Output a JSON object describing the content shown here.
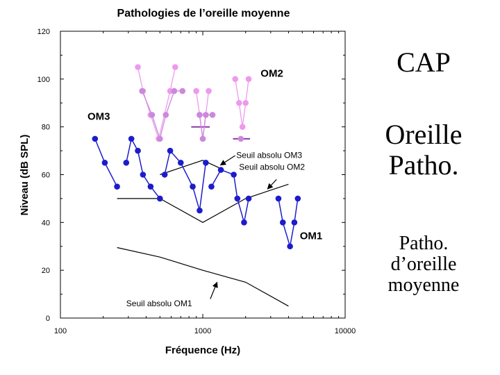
{
  "chart_data": {
    "type": "line",
    "title": "Pathologies de l’oreille moyenne",
    "xlabel": "Fréquence (Hz)",
    "ylabel": "Niveau (dB SPL)",
    "x_scale": "log",
    "xlim": [
      100,
      10000
    ],
    "ylim": [
      0,
      120
    ],
    "x_ticks": [
      100,
      1000,
      10000
    ],
    "x_tick_labels": [
      "100",
      "1000",
      "10000"
    ],
    "y_ticks": [
      0,
      20,
      40,
      60,
      80,
      100,
      120
    ],
    "y_tick_labels": [
      "0",
      "20",
      "40",
      "60",
      "80",
      "100",
      "120"
    ],
    "grid": false,
    "colors": {
      "om1": "#1c1ccc",
      "om2": "#ee99ee",
      "om3": "#cc88dd",
      "om3_bar": "#8a3aa8",
      "threshold": "#000000"
    },
    "series": [
      {
        "name": "OM1",
        "segments": [
          [
            [
              175,
              75
            ],
            [
              205,
              65
            ],
            [
              250,
              55
            ]
          ],
          [
            [
              290,
              65
            ],
            [
              315,
              75
            ],
            [
              350,
              70
            ],
            [
              380,
              60
            ],
            [
              430,
              55
            ],
            [
              500,
              50
            ]
          ],
          [
            [
              540,
              60
            ],
            [
              590,
              70
            ],
            [
              700,
              65
            ],
            [
              850,
              55
            ],
            [
              950,
              45
            ],
            [
              1050,
              65
            ]
          ],
          [
            [
              1150,
              55
            ],
            [
              1340,
              62
            ],
            [
              1650,
              60
            ],
            [
              1750,
              50
            ],
            [
              1950,
              40
            ],
            [
              2100,
              50
            ]
          ],
          [
            [
              3400,
              50
            ],
            [
              3650,
              40
            ],
            [
              4100,
              30
            ],
            [
              4400,
              40
            ],
            [
              4650,
              50
            ]
          ]
        ]
      },
      {
        "name": "OM2",
        "segments": [
          [
            [
              350,
              105
            ],
            [
              380,
              95
            ],
            [
              430,
              85
            ],
            [
              490,
              75
            ],
            [
              590,
              95
            ],
            [
              640,
              105
            ]
          ],
          [
            [
              900,
              95
            ],
            [
              950,
              85
            ],
            [
              1000,
              75
            ],
            [
              1100,
              95
            ]
          ],
          [
            [
              1690,
              100
            ],
            [
              1800,
              90
            ],
            [
              1900,
              80
            ],
            [
              2000,
              90
            ],
            [
              2100,
              100
            ]
          ]
        ]
      },
      {
        "name": "OM3",
        "segments": [
          [
            [
              375,
              95
            ],
            [
              440,
              85
            ],
            [
              500,
              75
            ],
            [
              550,
              85
            ],
            [
              630,
              95
            ],
            [
              720,
              95
            ]
          ],
          [
            [
              950,
              85
            ],
            [
              1000,
              75
            ],
            [
              1050,
              85
            ],
            [
              1170,
              85
            ]
          ],
          [
            [
              1850,
              75
            ]
          ]
        ]
      }
    ],
    "om3_bars": [
      [
        [
          830,
          80
        ],
        [
          1120,
          80
        ]
      ],
      [
        [
          1630,
          75
        ],
        [
          2150,
          75
        ]
      ]
    ],
    "thresholds": [
      {
        "name": "Seuil absolu OM1",
        "points": [
          [
            250,
            29.5
          ],
          [
            500,
            25.5
          ],
          [
            1000,
            20
          ],
          [
            2000,
            15
          ],
          [
            4000,
            5
          ]
        ]
      },
      {
        "name": "Seuil absolu OM2",
        "points": [
          [
            250,
            50
          ],
          [
            500,
            50
          ],
          [
            1000,
            40
          ],
          [
            2000,
            50
          ],
          [
            4000,
            56
          ]
        ]
      },
      {
        "name": "Seuil absolu OM3",
        "points": [
          [
            500,
            60
          ],
          [
            1000,
            66
          ],
          [
            1400,
            62
          ]
        ]
      }
    ],
    "annotations": [
      {
        "text": "OM2",
        "x": 2550,
        "y": 101
      },
      {
        "text": "OM3",
        "x": 155,
        "y": 83
      },
      {
        "text": "OM1",
        "x": 4800,
        "y": 33
      },
      {
        "text": "Seuil absolu OM3",
        "x": 1720,
        "y": 67
      },
      {
        "text": "Seuil absolu OM2",
        "x": 1720,
        "y": 62
      },
      {
        "text": "Seuil absolu OM1",
        "x": 290,
        "y": 5
      }
    ]
  },
  "side": {
    "cap": "CAP",
    "patho_line1": "Oreille",
    "patho_line2": "Patho.",
    "desc_line1": "Patho.",
    "desc_line2": "d’oreille",
    "desc_line3": "moyenne"
  }
}
